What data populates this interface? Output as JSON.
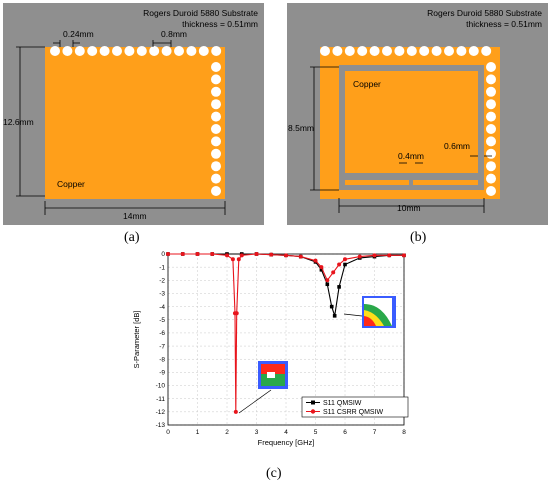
{
  "panel_a": {
    "label": "(a)",
    "substrate_line1": "Rogers Duroid 5880 Substrate",
    "substrate_line2": "thickness = 0.51mm",
    "dim_gap": "0.24mm",
    "dim_via": "0.8mm",
    "dim_height": "12.6mm",
    "dim_width": "14mm",
    "copper_label": "Copper"
  },
  "panel_b": {
    "label": "(b)",
    "substrate_line1": "Rogers Duroid 5880 Substrate",
    "substrate_line2": "thickness = 0.51mm",
    "dim_height": "8.5mm",
    "dim_width": "10mm",
    "dim_slot": "0.4mm",
    "dim_ring": "0.6mm",
    "copper_label": "Copper"
  },
  "panel_c": {
    "label": "(c)"
  },
  "colors": {
    "substrate": "#8f8f8f",
    "copper": "#ff9f1a",
    "via": "#ffffff"
  },
  "chart_data": {
    "type": "line",
    "xlabel": "Frequency [GHz]",
    "ylabel": "S-Parameter [dB]",
    "xlim": [
      0,
      8
    ],
    "ylim": [
      -13,
      0
    ],
    "xticks": [
      0,
      1,
      2,
      3,
      4,
      5,
      6,
      7,
      8
    ],
    "yticks": [
      0,
      -1,
      -2,
      -3,
      -4,
      -5,
      -6,
      -7,
      -8,
      -9,
      -10,
      -11,
      -12,
      -13
    ],
    "grid": true,
    "legend_position": "bottom-right",
    "series": [
      {
        "name": "S11 QMSIW",
        "color": "#000000",
        "marker": "square",
        "x": [
          0,
          0.5,
          1,
          1.5,
          2,
          2.5,
          3,
          3.5,
          4,
          4.5,
          5,
          5.2,
          5.4,
          5.55,
          5.65,
          5.8,
          6,
          6.5,
          7,
          7.5,
          8
        ],
        "y": [
          0,
          0,
          0,
          0,
          0,
          0,
          0,
          -0.05,
          -0.1,
          -0.2,
          -0.6,
          -1.2,
          -2.3,
          -4.0,
          -4.7,
          -2.5,
          -0.8,
          -0.3,
          -0.2,
          -0.1,
          -0.1
        ]
      },
      {
        "name": "S11 CSRR QMSIW",
        "color": "#e8141c",
        "marker": "circle",
        "x": [
          0,
          0.5,
          1,
          1.5,
          2,
          2.2,
          2.27,
          2.3,
          2.33,
          2.4,
          2.5,
          3,
          3.5,
          4,
          4.5,
          5,
          5.2,
          5.4,
          5.6,
          5.8,
          6,
          6.5,
          7,
          7.5,
          8
        ],
        "y": [
          0,
          0,
          0,
          0,
          -0.1,
          -0.4,
          -4.5,
          -12.0,
          -4.5,
          -0.4,
          -0.1,
          0,
          -0.05,
          -0.1,
          -0.2,
          -0.5,
          -1.0,
          -2.0,
          -1.4,
          -0.8,
          -0.4,
          -0.2,
          -0.1,
          -0.1,
          -0.1
        ]
      }
    ]
  }
}
